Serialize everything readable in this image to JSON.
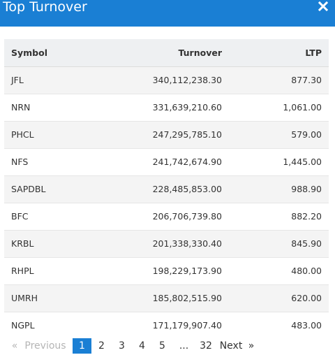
{
  "header": {
    "title": "Top Turnover",
    "close_icon": "close-icon"
  },
  "table": {
    "columns": [
      "Symbol",
      "Turnover",
      "LTP"
    ],
    "rows": [
      {
        "symbol": "JFL",
        "turnover": "340,112,238.30",
        "ltp": "877.30"
      },
      {
        "symbol": "NRN",
        "turnover": "331,639,210.60",
        "ltp": "1,061.00"
      },
      {
        "symbol": "PHCL",
        "turnover": "247,295,785.10",
        "ltp": "579.00"
      },
      {
        "symbol": "NFS",
        "turnover": "241,742,674.90",
        "ltp": "1,445.00"
      },
      {
        "symbol": "SAPDBL",
        "turnover": "228,485,853.00",
        "ltp": "988.90"
      },
      {
        "symbol": "BFC",
        "turnover": "206,706,739.80",
        "ltp": "882.20"
      },
      {
        "symbol": "KRBL",
        "turnover": "201,338,330.40",
        "ltp": "845.90"
      },
      {
        "symbol": "RHPL",
        "turnover": "198,229,173.90",
        "ltp": "480.00"
      },
      {
        "symbol": "UMRH",
        "turnover": "185,802,515.90",
        "ltp": "620.00"
      },
      {
        "symbol": "NGPL",
        "turnover": "171,179,907.40",
        "ltp": "483.00"
      }
    ]
  },
  "pagination": {
    "prev_arrow": "«",
    "previous": "Previous",
    "pages": [
      "1",
      "2",
      "3",
      "4",
      "5"
    ],
    "ellipsis": "...",
    "last_page": "32",
    "next": "Next",
    "next_arrow": "»",
    "active_page": "1"
  },
  "colors": {
    "accent": "#1a7fd4",
    "header_row": "#eef0f2",
    "striped_row": "#f4f4f4"
  }
}
